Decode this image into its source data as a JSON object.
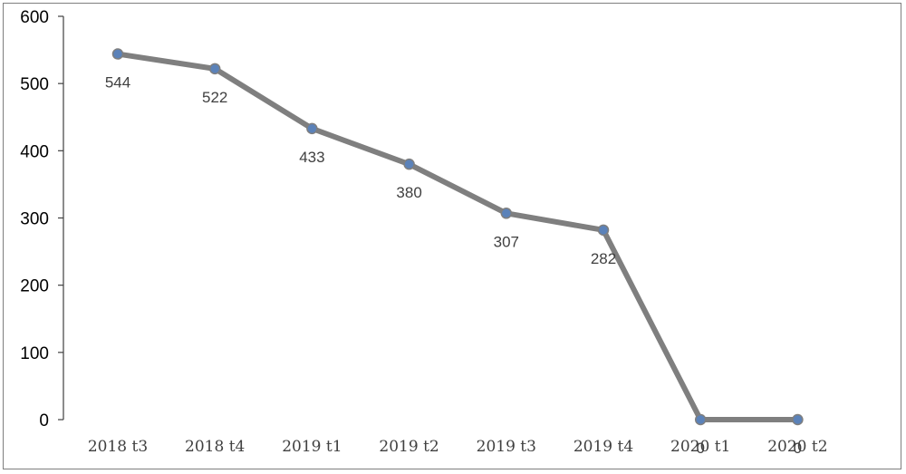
{
  "chart_data": {
    "type": "line",
    "categories": [
      "2018 t3",
      "2018 t4",
      "2019 t1",
      "2019 t2",
      "2019 t3",
      "2019 t4",
      "2020 t1",
      "2020 t2"
    ],
    "series": [
      {
        "values": [
          544,
          522,
          433,
          380,
          307,
          282,
          0,
          0
        ],
        "data_labels": [
          "544",
          "522",
          "433",
          "380",
          "307",
          "282",
          "0",
          "0"
        ],
        "color": "#7f7f7f",
        "marker_color": "#5b82b9"
      }
    ],
    "ylim": [
      0,
      600
    ],
    "yticks": [
      0,
      100,
      200,
      300,
      400,
      500,
      600
    ],
    "ytick_labels": [
      "0",
      "100",
      "200",
      "300",
      "400",
      "500",
      "600"
    ],
    "grid": false,
    "title": "",
    "xlabel": "",
    "ylabel": ""
  }
}
